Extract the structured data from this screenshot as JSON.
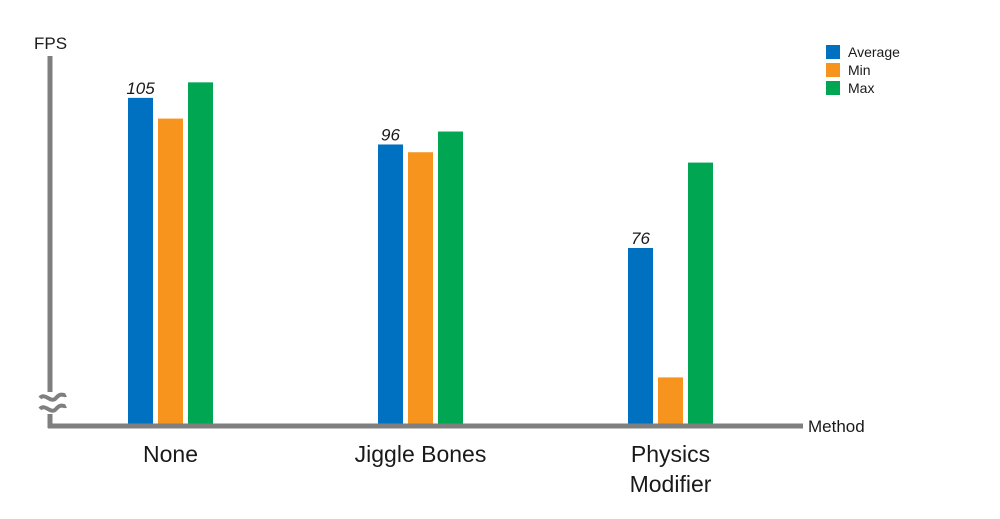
{
  "chart_data": {
    "type": "bar",
    "title": "",
    "xlabel": "Method",
    "ylabel": "FPS",
    "categories": [
      [
        "None"
      ],
      [
        "Jiggle Bones"
      ],
      [
        "Physics",
        "Modifier"
      ]
    ],
    "series": [
      {
        "name": "Average",
        "color": "#0070c0",
        "values": [
          105,
          96,
          76
        ],
        "labels": [
          "105",
          "96",
          "76"
        ]
      },
      {
        "name": "Min",
        "color": "#f7941d",
        "values": [
          101,
          94.5,
          51
        ]
      },
      {
        "name": "Max",
        "color": "#00a651",
        "values": [
          108,
          98.5,
          92.5
        ]
      }
    ],
    "ylim": [
      42,
      110
    ],
    "y_axis_break": true,
    "grid": false,
    "legend": "top-right"
  }
}
